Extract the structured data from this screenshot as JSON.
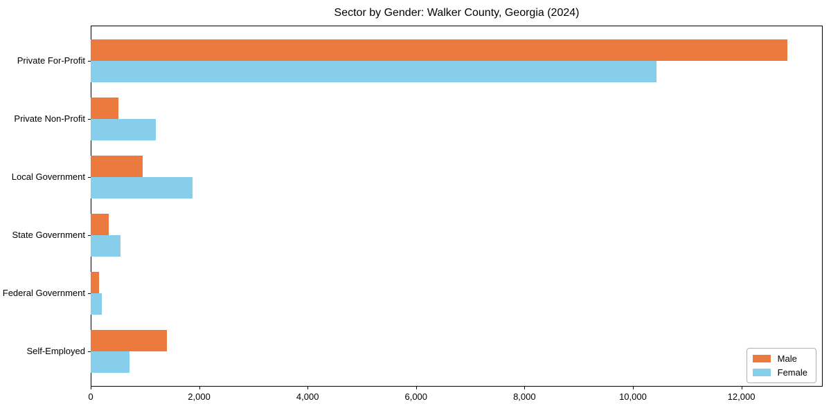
{
  "title": "Sector by Gender: Walker County, Georgia (2024)",
  "colors": {
    "male": "#EC7A3E",
    "female": "#87CEEB",
    "axis": "#000000",
    "text": "#000000",
    "legend_border": "#b0b0b0",
    "background": "#ffffff"
  },
  "chart_data": {
    "type": "bar",
    "orientation": "horizontal",
    "title": "Sector by Gender: Walker County, Georgia (2024)",
    "categories": [
      "Private For-Profit",
      "Private Non-Profit",
      "Local Government",
      "State Government",
      "Federal Government",
      "Self-Employed"
    ],
    "series": [
      {
        "name": "Male",
        "color": "#EC7A3E",
        "values": [
          12850,
          510,
          960,
          335,
          155,
          1410
        ]
      },
      {
        "name": "Female",
        "color": "#87CEEB",
        "values": [
          10440,
          1200,
          1880,
          550,
          205,
          720
        ]
      }
    ],
    "xlabel": "",
    "ylabel": "",
    "xlim": [
      0,
      13500
    ],
    "xticks": [
      0,
      2000,
      4000,
      6000,
      8000,
      10000,
      12000
    ],
    "xtick_labels": [
      "0",
      "2,000",
      "4,000",
      "6,000",
      "8,000",
      "10,000",
      "12,000"
    ],
    "grid": false,
    "legend": {
      "position": "lower right",
      "entries": [
        "Male",
        "Female"
      ]
    }
  }
}
